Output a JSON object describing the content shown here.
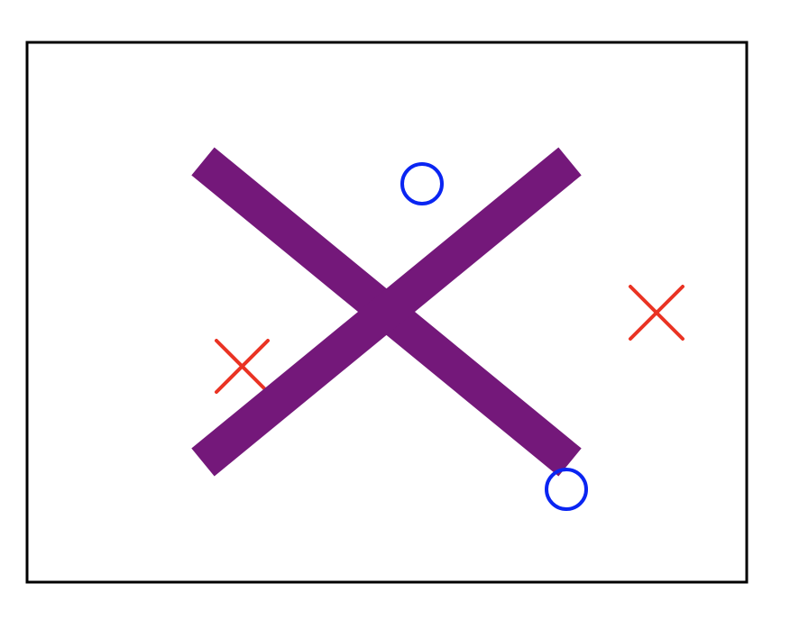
{
  "scene": {
    "colors": {
      "background": "#ffffff",
      "frame": "#000000",
      "big_cross": "#74187a",
      "small_cross": "#ea3323",
      "circle": "#0a25f2"
    },
    "marks": [
      {
        "name": "big-purple-cross",
        "shape": "cross",
        "color": "big_cross"
      },
      {
        "name": "top-blue-circle",
        "shape": "circle",
        "color": "circle"
      },
      {
        "name": "bottom-right-blue-circle",
        "shape": "circle",
        "color": "circle"
      },
      {
        "name": "left-red-cross",
        "shape": "cross",
        "color": "small_cross"
      },
      {
        "name": "right-red-cross",
        "shape": "cross",
        "color": "small_cross"
      }
    ]
  }
}
